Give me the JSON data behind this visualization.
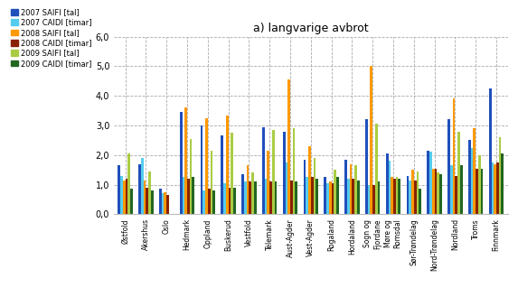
{
  "title": "a) langvarige avbrot",
  "categories": [
    "Østfold",
    "Akershus",
    "Oslo",
    "Hedmark",
    "Oppland",
    "Buskerud",
    "Vestfold",
    "Telemark",
    "Aust-Agder",
    "Vest-Agder",
    "Rogaland",
    "Hordaland",
    "Sogn og\nFjordane",
    "Møre og\nRomsdal",
    "Sør-Trøndelag",
    "Nord-Trøndelag",
    "Nordland",
    "Troms",
    "Finnmark"
  ],
  "series": {
    "2007 SAIFI [tal]": [
      1.65,
      1.7,
      0.85,
      3.45,
      3.0,
      2.65,
      1.35,
      2.95,
      2.8,
      1.85,
      1.25,
      1.85,
      3.2,
      2.05,
      1.3,
      2.15,
      3.2,
      2.5,
      4.25
    ],
    "2007 CAIDI [timar]": [
      1.3,
      1.9,
      0.72,
      1.25,
      0.8,
      1.05,
      1.1,
      1.2,
      1.75,
      1.25,
      1.05,
      1.2,
      1.0,
      1.8,
      1.15,
      2.1,
      1.65,
      2.25,
      1.75
    ],
    "2008 SAIFI [tal]": [
      1.15,
      1.15,
      0.75,
      3.6,
      3.25,
      3.35,
      1.65,
      2.15,
      4.55,
      2.3,
      1.1,
      1.7,
      5.0,
      1.25,
      1.5,
      1.55,
      3.9,
      2.9,
      1.7
    ],
    "2008 CAIDI [timar]": [
      1.2,
      0.9,
      0.65,
      1.2,
      0.85,
      0.9,
      1.1,
      1.1,
      1.15,
      1.25,
      1.05,
      1.2,
      1.0,
      1.2,
      1.15,
      1.55,
      1.3,
      1.55,
      1.75
    ],
    "2009 SAIFI [tal]": [
      2.05,
      1.45,
      0.0,
      2.55,
      2.15,
      2.75,
      1.4,
      2.85,
      2.9,
      1.9,
      1.5,
      1.65,
      3.05,
      1.25,
      1.45,
      1.4,
      2.8,
      2.0,
      2.6
    ],
    "2009 CAIDI [timar]": [
      0.85,
      0.8,
      0.0,
      1.25,
      0.8,
      0.9,
      1.1,
      1.1,
      1.1,
      1.2,
      1.25,
      1.15,
      1.1,
      1.2,
      0.85,
      1.35,
      1.65,
      1.55,
      2.05
    ]
  },
  "colors": {
    "2007 SAIFI [tal]": "#1F4FBB",
    "2007 CAIDI [timar]": "#55CCEE",
    "2008 SAIFI [tal]": "#FF9900",
    "2008 CAIDI [timar]": "#882200",
    "2009 SAIFI [tal]": "#AACC44",
    "2009 CAIDI [timar]": "#226622"
  },
  "ylim": [
    0,
    6.0
  ],
  "yticks": [
    0.0,
    1.0,
    2.0,
    3.0,
    4.0,
    5.0,
    6.0
  ],
  "ytick_labels": [
    "0,0",
    "1,0",
    "2,0",
    "3,0",
    "4,0",
    "5,0",
    "6,0"
  ],
  "background_color": "#ffffff",
  "grid_color": "#aaaaaa"
}
